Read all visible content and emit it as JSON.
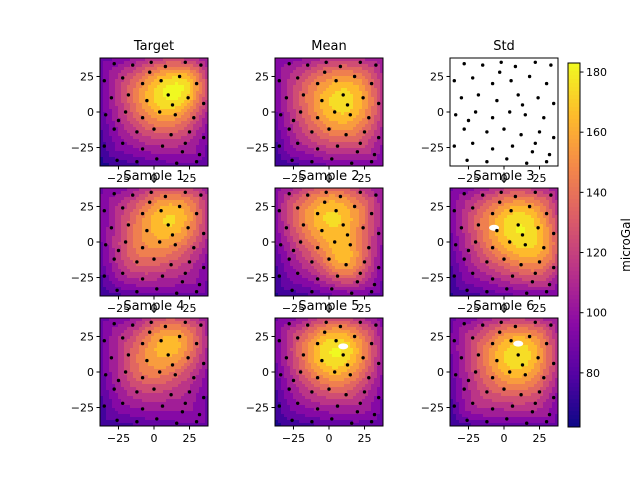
{
  "chart_data": {
    "type": "heatmap",
    "colormap": "plasma",
    "x_ticks": [
      "−25",
      "0",
      "25"
    ],
    "y_ticks": [
      "25",
      "0",
      "−25"
    ],
    "xlim": [
      -38,
      38
    ],
    "ylim": [
      -38,
      38
    ],
    "colorbar": {
      "label": "microGal",
      "range": [
        62,
        183
      ],
      "ticks": [
        "80",
        "100",
        "120",
        "140",
        "160",
        "180"
      ],
      "tick_values": [
        80,
        100,
        120,
        140,
        160,
        180
      ]
    },
    "panels": [
      {
        "title": "Target",
        "kind": "field",
        "field": {
          "base": 103,
          "peaks": [
            {
              "x": 8,
              "y": 12,
              "amp": 72,
              "s": 20
            },
            {
              "x": 25,
              "y": 20,
              "amp": 25,
              "s": 12
            }
          ],
          "edge_drop": 20
        },
        "holes": []
      },
      {
        "title": "Mean",
        "kind": "field",
        "field": {
          "base": 108,
          "peaks": [
            {
              "x": 10,
              "y": 8,
              "amp": 68,
              "s": 22
            }
          ],
          "edge_drop": 22
        },
        "holes": []
      },
      {
        "title": "Std",
        "kind": "blank",
        "holes": []
      },
      {
        "title": "Sample 1",
        "kind": "field",
        "field": {
          "base": 106,
          "peaks": [
            {
              "x": 12,
              "y": 18,
              "amp": 66,
              "s": 20
            },
            {
              "x": -12,
              "y": -10,
              "amp": 22,
              "s": 15
            }
          ],
          "edge_drop": 20
        },
        "holes": []
      },
      {
        "title": "Sample 2",
        "kind": "field",
        "field": {
          "base": 104,
          "peaks": [
            {
              "x": 2,
              "y": 20,
              "amp": 70,
              "s": 22
            },
            {
              "x": 12,
              "y": -15,
              "amp": 40,
              "s": 12
            }
          ],
          "edge_drop": 20
        },
        "holes": []
      },
      {
        "title": "Sample 3",
        "kind": "field",
        "field": {
          "base": 106,
          "peaks": [
            {
              "x": 10,
              "y": 12,
              "amp": 72,
              "s": 22
            },
            {
              "x": 30,
              "y": -10,
              "amp": 25,
              "s": 14
            }
          ],
          "edge_drop": 22
        },
        "holes": [
          {
            "x": -7,
            "y": 10
          }
        ]
      },
      {
        "title": "Sample 4",
        "kind": "field",
        "field": {
          "base": 106,
          "peaks": [
            {
              "x": 12,
              "y": 22,
              "amp": 60,
              "s": 18
            },
            {
              "x": -8,
              "y": 0,
              "amp": 20,
              "s": 14
            }
          ],
          "edge_drop": 20
        },
        "holes": []
      },
      {
        "title": "Sample 5",
        "kind": "field",
        "field": {
          "base": 105,
          "peaks": [
            {
              "x": 5,
              "y": 15,
              "amp": 78,
              "s": 20
            }
          ],
          "edge_drop": 22
        },
        "holes": [
          {
            "x": 10,
            "y": 18
          }
        ]
      },
      {
        "title": "Sample 6",
        "kind": "field",
        "field": {
          "base": 106,
          "peaks": [
            {
              "x": 10,
              "y": 12,
              "amp": 72,
              "s": 21
            },
            {
              "x": -20,
              "y": -25,
              "amp": 10,
              "s": 10
            }
          ],
          "edge_drop": 22
        },
        "holes": [
          {
            "x": 10,
            "y": 20
          }
        ]
      }
    ],
    "stations": [
      [
        -28,
        34
      ],
      [
        -15,
        33
      ],
      [
        -2,
        35
      ],
      [
        8,
        32
      ],
      [
        22,
        35
      ],
      [
        33,
        33
      ],
      [
        -35,
        22
      ],
      [
        -22,
        24
      ],
      [
        -8,
        20
      ],
      [
        5,
        22
      ],
      [
        18,
        25
      ],
      [
        30,
        20
      ],
      [
        -30,
        10
      ],
      [
        -18,
        12
      ],
      [
        -5,
        8
      ],
      [
        10,
        12
      ],
      [
        24,
        10
      ],
      [
        35,
        6
      ],
      [
        -34,
        -2
      ],
      [
        -20,
        0
      ],
      [
        -8,
        -4
      ],
      [
        4,
        0
      ],
      [
        15,
        -2
      ],
      [
        28,
        -4
      ],
      [
        -28,
        -12
      ],
      [
        -12,
        -14
      ],
      [
        0,
        -12
      ],
      [
        12,
        -16
      ],
      [
        25,
        -14
      ],
      [
        35,
        -18
      ],
      [
        -35,
        -24
      ],
      [
        -22,
        -22
      ],
      [
        -8,
        -26
      ],
      [
        6,
        -24
      ],
      [
        20,
        -28
      ],
      [
        32,
        -30
      ],
      [
        -26,
        -34
      ],
      [
        -12,
        -35
      ],
      [
        2,
        -33
      ],
      [
        16,
        -36
      ],
      [
        30,
        -35
      ],
      [
        -3,
        28
      ],
      [
        13,
        5
      ],
      [
        -25,
        -6
      ],
      [
        22,
        -22
      ]
    ]
  }
}
